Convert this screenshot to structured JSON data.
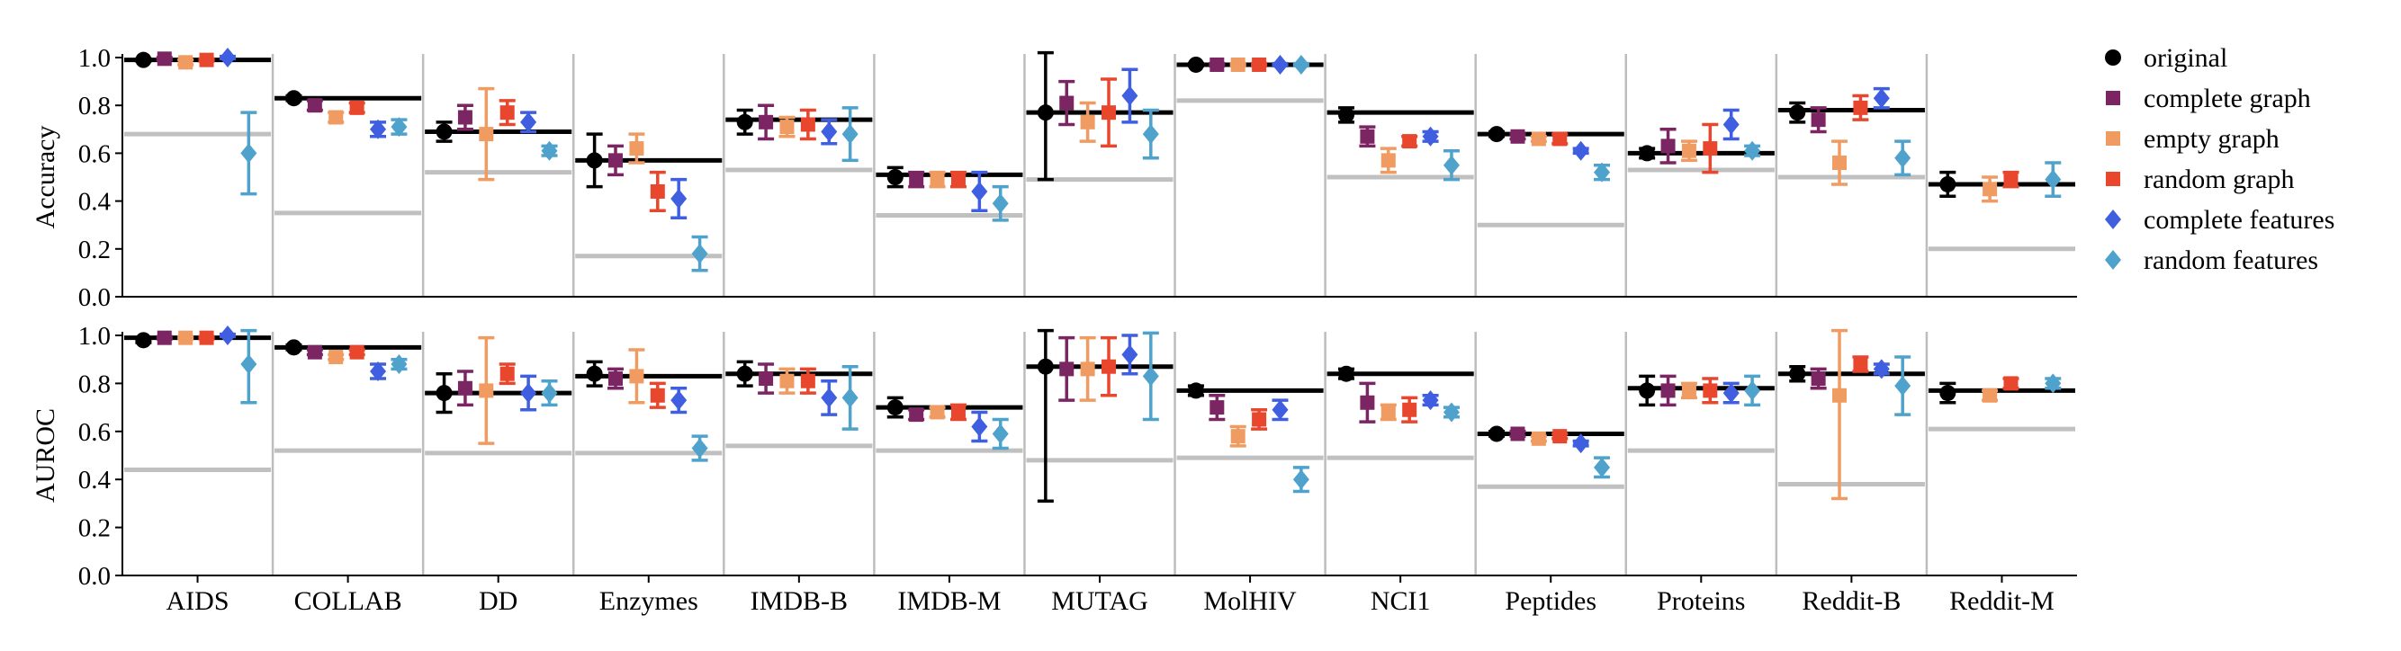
{
  "chart_data": {
    "type": "errorbar-panels",
    "datasets": [
      "AIDS",
      "COLLAB",
      "DD",
      "Enzymes",
      "IMDB-B",
      "IMDB-M",
      "MUTAG",
      "MolHIV",
      "NCI1",
      "Peptides",
      "Proteins",
      "Reddit-B",
      "Reddit-M"
    ],
    "ylim": [
      0,
      1
    ],
    "yticks": [
      "0.0",
      "0.2",
      "0.4",
      "0.6",
      "0.8",
      "1.0"
    ],
    "colors": {
      "original": "#000000",
      "complete_graph": "#7b2563",
      "empty_graph": "#f09b62",
      "random_graph": "#e8472e",
      "complete_features": "#3f5fe0",
      "random_features": "#4ea2cb",
      "baseline": "#c0c0c0",
      "separator": "#bdbdbd"
    },
    "legend": {
      "position": "right",
      "entries": [
        {
          "label": "original",
          "marker": "circle",
          "color": "#000000"
        },
        {
          "label": "complete graph",
          "marker": "square",
          "color": "#7b2563"
        },
        {
          "label": "empty graph",
          "marker": "square",
          "color": "#f09b62"
        },
        {
          "label": "random graph",
          "marker": "square",
          "color": "#e8472e"
        },
        {
          "label": "complete features",
          "marker": "diamond",
          "color": "#3f5fe0"
        },
        {
          "label": "random features",
          "marker": "diamond",
          "color": "#4ea2cb"
        }
      ]
    },
    "panels": [
      {
        "ylabel": "Accuracy",
        "series_order": [
          "original",
          "complete_graph",
          "empty_graph",
          "random_graph",
          "complete_features",
          "random_features"
        ],
        "original_line": [
          0.99,
          0.83,
          0.69,
          0.57,
          0.74,
          0.51,
          0.77,
          0.97,
          0.77,
          0.68,
          0.6,
          0.78,
          0.47
        ],
        "baseline": [
          0.68,
          0.35,
          0.52,
          0.17,
          0.53,
          0.34,
          0.49,
          0.82,
          0.5,
          0.3,
          0.53,
          0.5,
          0.2
        ],
        "values": {
          "original": [
            [
              0.99,
              0.005
            ],
            [
              0.83,
              0.01
            ],
            [
              0.69,
              0.04
            ],
            [
              0.57,
              0.11
            ],
            [
              0.73,
              0.05
            ],
            [
              0.5,
              0.04
            ],
            [
              0.77,
              0.28
            ],
            [
              0.97,
              0.005
            ],
            [
              0.76,
              0.03
            ],
            [
              0.68,
              0.01
            ],
            [
              0.6,
              0.02
            ],
            [
              0.77,
              0.04
            ],
            [
              0.47,
              0.05
            ]
          ],
          "complete_graph": [
            [
              0.995,
              0.005
            ],
            [
              0.8,
              0.02
            ],
            [
              0.75,
              0.05
            ],
            [
              0.57,
              0.06
            ],
            [
              0.73,
              0.07
            ],
            [
              0.49,
              0.03
            ],
            [
              0.81,
              0.09
            ],
            [
              0.97,
              0.005
            ],
            [
              0.67,
              0.04
            ],
            [
              0.67,
              0.01
            ],
            [
              0.63,
              0.07
            ],
            [
              0.74,
              0.05
            ],
            null
          ],
          "empty_graph": [
            [
              0.98,
              0.01
            ],
            [
              0.75,
              0.02
            ],
            [
              0.68,
              0.19
            ],
            [
              0.62,
              0.06
            ],
            [
              0.71,
              0.04
            ],
            [
              0.49,
              0.03
            ],
            [
              0.73,
              0.08
            ],
            [
              0.97,
              0.005
            ],
            [
              0.57,
              0.05
            ],
            [
              0.66,
              0.01
            ],
            [
              0.61,
              0.04
            ],
            [
              0.56,
              0.09
            ],
            [
              0.45,
              0.05
            ]
          ],
          "random_graph": [
            [
              0.99,
              0.005
            ],
            [
              0.79,
              0.02
            ],
            [
              0.77,
              0.05
            ],
            [
              0.44,
              0.08
            ],
            [
              0.72,
              0.06
            ],
            [
              0.49,
              0.03
            ],
            [
              0.77,
              0.14
            ],
            [
              0.97,
              0.005
            ],
            [
              0.65,
              0.02
            ],
            [
              0.66,
              0.02
            ],
            [
              0.62,
              0.1
            ],
            [
              0.79,
              0.05
            ],
            [
              0.49,
              0.03
            ]
          ],
          "complete_features": [
            [
              1.0,
              0.005
            ],
            [
              0.7,
              0.03
            ],
            [
              0.73,
              0.04
            ],
            [
              0.41,
              0.08
            ],
            [
              0.69,
              0.05
            ],
            [
              0.44,
              0.08
            ],
            [
              0.84,
              0.11
            ],
            [
              0.97,
              0.005
            ],
            [
              0.67,
              0.02
            ],
            [
              0.61,
              0.01
            ],
            [
              0.72,
              0.06
            ],
            [
              0.83,
              0.04
            ],
            null
          ],
          "random_features": [
            [
              0.6,
              0.17
            ],
            [
              0.71,
              0.03
            ],
            [
              0.61,
              0.02
            ],
            [
              0.18,
              0.07
            ],
            [
              0.68,
              0.11
            ],
            [
              0.39,
              0.07
            ],
            [
              0.68,
              0.1
            ],
            [
              0.97,
              0.005
            ],
            [
              0.55,
              0.06
            ],
            [
              0.52,
              0.03
            ],
            [
              0.61,
              0.02
            ],
            [
              0.58,
              0.07
            ],
            [
              0.49,
              0.07
            ]
          ]
        }
      },
      {
        "ylabel": "AUROC",
        "series_order": [
          "original",
          "complete_graph",
          "empty_graph",
          "random_graph",
          "complete_features",
          "random_features"
        ],
        "original_line": [
          0.99,
          0.95,
          0.76,
          0.83,
          0.84,
          0.7,
          0.87,
          0.77,
          0.84,
          0.59,
          0.78,
          0.84,
          0.77
        ],
        "baseline": [
          0.44,
          0.52,
          0.51,
          0.51,
          0.54,
          0.52,
          0.48,
          0.49,
          0.49,
          0.37,
          0.52,
          0.38,
          0.61
        ],
        "values": {
          "original": [
            [
              0.98,
              0.01
            ],
            [
              0.95,
              0.01
            ],
            [
              0.76,
              0.08
            ],
            [
              0.84,
              0.05
            ],
            [
              0.84,
              0.05
            ],
            [
              0.7,
              0.04
            ],
            [
              0.87,
              0.56
            ],
            [
              0.77,
              0.02
            ],
            [
              0.84,
              0.02
            ],
            [
              0.59,
              0.01
            ],
            [
              0.77,
              0.06
            ],
            [
              0.84,
              0.03
            ],
            [
              0.76,
              0.04
            ]
          ],
          "complete_graph": [
            [
              0.99,
              0.005
            ],
            [
              0.93,
              0.01
            ],
            [
              0.78,
              0.07
            ],
            [
              0.82,
              0.04
            ],
            [
              0.82,
              0.06
            ],
            [
              0.67,
              0.02
            ],
            [
              0.86,
              0.13
            ],
            [
              0.7,
              0.05
            ],
            [
              0.72,
              0.08
            ],
            [
              0.59,
              0.01
            ],
            [
              0.77,
              0.06
            ],
            [
              0.82,
              0.04
            ],
            null
          ],
          "empty_graph": [
            [
              0.99,
              0.005
            ],
            [
              0.91,
              0.01
            ],
            [
              0.77,
              0.22
            ],
            [
              0.83,
              0.11
            ],
            [
              0.81,
              0.05
            ],
            [
              0.68,
              0.02
            ],
            [
              0.86,
              0.13
            ],
            [
              0.58,
              0.04
            ],
            [
              0.68,
              0.03
            ],
            [
              0.57,
              0.01
            ],
            [
              0.77,
              0.03
            ],
            [
              0.75,
              0.43
            ],
            [
              0.75,
              0.02
            ]
          ],
          "random_graph": [
            [
              0.99,
              0.005
            ],
            [
              0.93,
              0.01
            ],
            [
              0.84,
              0.04
            ],
            [
              0.75,
              0.05
            ],
            [
              0.81,
              0.05
            ],
            [
              0.68,
              0.03
            ],
            [
              0.87,
              0.12
            ],
            [
              0.65,
              0.04
            ],
            [
              0.69,
              0.05
            ],
            [
              0.58,
              0.01
            ],
            [
              0.77,
              0.05
            ],
            [
              0.88,
              0.03
            ],
            [
              0.8,
              0.02
            ]
          ],
          "complete_features": [
            [
              1.0,
              0.005
            ],
            [
              0.85,
              0.03
            ],
            [
              0.76,
              0.07
            ],
            [
              0.73,
              0.05
            ],
            [
              0.74,
              0.07
            ],
            [
              0.62,
              0.06
            ],
            [
              0.92,
              0.08
            ],
            [
              0.69,
              0.04
            ],
            [
              0.73,
              0.02
            ],
            [
              0.55,
              0.01
            ],
            [
              0.76,
              0.04
            ],
            [
              0.86,
              0.02
            ],
            null
          ],
          "random_features": [
            [
              0.88,
              0.16
            ],
            [
              0.88,
              0.02
            ],
            [
              0.76,
              0.05
            ],
            [
              0.53,
              0.05
            ],
            [
              0.74,
              0.13
            ],
            [
              0.59,
              0.06
            ],
            [
              0.83,
              0.18
            ],
            [
              0.4,
              0.05
            ],
            [
              0.68,
              0.02
            ],
            [
              0.45,
              0.04
            ],
            [
              0.77,
              0.06
            ],
            [
              0.79,
              0.12
            ],
            [
              0.8,
              0.02
            ]
          ]
        }
      }
    ]
  }
}
